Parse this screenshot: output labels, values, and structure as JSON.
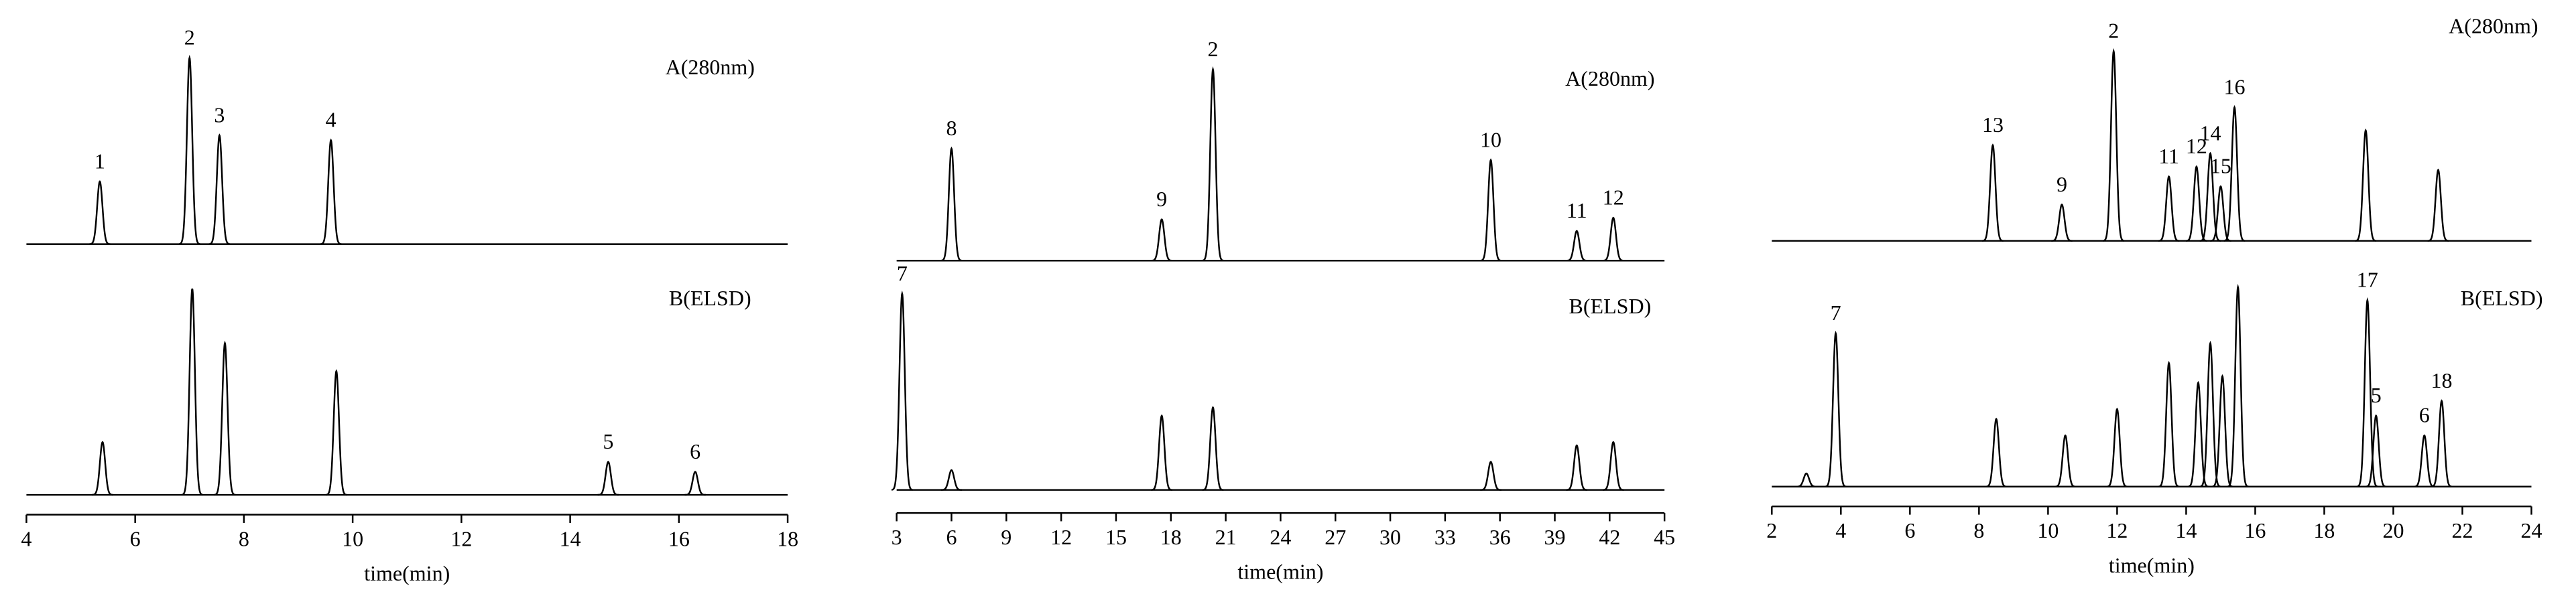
{
  "chart_data": [
    {
      "type": "chromatogram",
      "x_label": "time(min)",
      "xlim": [
        4,
        18
      ],
      "xticks": [
        4,
        6,
        8,
        10,
        12,
        14,
        16,
        18
      ],
      "ylim": [
        0,
        130
      ],
      "series": [
        {
          "name": "A(280nm)",
          "x": [
            5.35,
            7.0,
            7.55,
            9.6
          ],
          "values": [
            38,
            113,
            66,
            63
          ],
          "labels": [
            "1",
            "2",
            "3",
            "4"
          ]
        },
        {
          "name": "B(ELSD)",
          "x": [
            5.4,
            7.05,
            7.65,
            9.7,
            14.7,
            16.3
          ],
          "values": [
            32,
            125,
            92,
            75,
            20,
            14
          ],
          "labels": [
            null,
            null,
            null,
            null,
            "5",
            "6"
          ]
        }
      ]
    },
    {
      "type": "chromatogram",
      "x_label": "time(min)",
      "xlim": [
        3,
        45
      ],
      "xticks": [
        3,
        6,
        9,
        12,
        15,
        18,
        21,
        24,
        27,
        30,
        33,
        36,
        39,
        42,
        45
      ],
      "ylim": [
        0,
        130
      ],
      "series": [
        {
          "name": "A(280nm)",
          "x": [
            6.0,
            17.5,
            20.3,
            35.5,
            40.2,
            42.2
          ],
          "values": [
            68,
            25,
            116,
            61,
            18,
            26
          ],
          "labels": [
            "8",
            "9",
            "2",
            "10",
            "11",
            "12"
          ]
        },
        {
          "name": "B(ELSD)",
          "x": [
            3.3,
            6.0,
            17.5,
            20.3,
            35.5,
            40.2,
            42.2
          ],
          "values": [
            119,
            12,
            45,
            50,
            17,
            27,
            29
          ],
          "labels": [
            "7",
            null,
            null,
            null,
            null,
            null,
            null
          ]
        }
      ]
    },
    {
      "type": "chromatogram",
      "x_label": "time(min)",
      "xlim": [
        2,
        24
      ],
      "xticks": [
        2,
        4,
        6,
        8,
        10,
        12,
        14,
        16,
        18,
        20,
        22,
        24
      ],
      "ylim": [
        0,
        130
      ],
      "series": [
        {
          "name": "A(280nm)",
          "x": [
            8.4,
            10.4,
            11.9,
            13.5,
            14.3,
            14.7,
            15.0,
            15.4,
            19.2,
            21.3
          ],
          "values": [
            58,
            22,
            115,
            39,
            45,
            53,
            33,
            81,
            67,
            43
          ],
          "labels": [
            "13",
            "9",
            "2",
            "11",
            "12",
            "14",
            "15",
            "16",
            null,
            null
          ]
        },
        {
          "name": "B(ELSD)",
          "x": [
            3.0,
            3.85,
            8.5,
            10.5,
            12.0,
            13.5,
            14.35,
            14.7,
            15.05,
            15.5,
            19.25,
            19.5,
            20.9,
            21.4
          ],
          "values": [
            8,
            93,
            41,
            31,
            47,
            75,
            63,
            87,
            67,
            121,
            113,
            43,
            31,
            52
          ],
          "labels": [
            null,
            "7",
            null,
            null,
            null,
            null,
            null,
            null,
            null,
            null,
            "17",
            "5",
            "6",
            "18"
          ]
        }
      ]
    }
  ]
}
